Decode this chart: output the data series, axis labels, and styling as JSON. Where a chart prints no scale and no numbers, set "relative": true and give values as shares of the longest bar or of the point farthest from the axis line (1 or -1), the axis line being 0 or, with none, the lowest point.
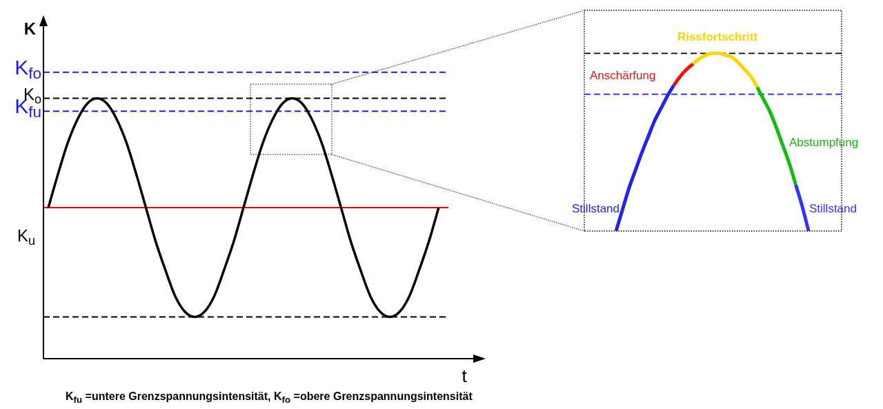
{
  "chart_data": [
    {
      "type": "line",
      "relative": true,
      "xlabel": "t",
      "ylabel": "K",
      "legend": false,
      "grid": false,
      "marker": "none",
      "line_style": "solid",
      "categories": [
        null,
        null,
        null,
        null,
        null,
        null,
        null,
        null,
        null,
        null,
        null,
        null,
        null,
        null,
        null,
        null,
        null,
        null,
        null,
        null,
        null,
        null,
        null,
        null,
        null,
        null,
        null,
        null,
        null,
        null,
        null,
        null,
        null,
        null,
        null,
        null,
        null,
        null,
        null,
        null,
        null
      ],
      "series": [
        {
          "color": "#000000",
          "values": [
            0.58,
            0.71,
            0.83,
            0.92,
            0.98,
            1,
            0.98,
            0.92,
            0.83,
            0.71,
            0.58,
            0.45,
            0.34,
            0.24,
            0.18,
            0.16,
            0.18,
            0.24,
            0.34,
            0.45,
            0.58,
            0.71,
            0.83,
            0.92,
            0.98,
            1,
            0.98,
            0.92,
            0.83,
            0.71,
            0.58,
            0.45,
            0.34,
            0.24,
            0.18,
            0.16,
            0.18,
            0.24,
            0.34,
            0.45,
            0.58
          ]
        }
      ],
      "ref_lines": [
        {
          "axis": "y",
          "value": 1.1,
          "label": "K$_{fo}$",
          "color": "#1a1aee",
          "line_style": "dashed"
        },
        {
          "axis": "y",
          "value": 1,
          "label": "K$_{o}$",
          "color": "#000000",
          "line_style": "dashed"
        },
        {
          "axis": "y",
          "value": 0.95,
          "label": "K$_{fu}$",
          "color": "#1a1aee",
          "line_style": "dashed"
        },
        {
          "axis": "y",
          "value": 0.58,
          "color": "#ee0000",
          "line_style": "solid"
        },
        {
          "axis": "y",
          "value": 0.16,
          "color": "#000000",
          "line_style": "dashed"
        }
      ],
      "annotations": [
        "K$_{u}$",
        "K$_{fu}$ =untere Grenzspannungsintensität, K$_{fo}$ =obere Grenzspannungsintensität"
      ]
    },
    {
      "type": "line",
      "relative": true,
      "legend": false,
      "grid": false,
      "marker": "none",
      "line_style": "solid",
      "categories": [
        null,
        null,
        null,
        null,
        null,
        null,
        null,
        null,
        null,
        null,
        null,
        null,
        null,
        null,
        null,
        null,
        null,
        null,
        null,
        null,
        null,
        null,
        null,
        null,
        null,
        null,
        null,
        null,
        null,
        null,
        null
      ],
      "series": [
        {
          "name": "Stillstand",
          "color": "#2222ee",
          "values": [
            0,
            0.12,
            0.24,
            0.34,
            0.44,
            0.53,
            0.62,
            0.69,
            0.76,
            0.82,
            null,
            null,
            null,
            null,
            null,
            null,
            null,
            null,
            null,
            null,
            null,
            null,
            null,
            null,
            null,
            null,
            null,
            null,
            null,
            null,
            null
          ]
        },
        {
          "name": "Anschärfung",
          "color": "#ee1111",
          "values": [
            null,
            null,
            null,
            null,
            null,
            null,
            null,
            null,
            null,
            0.82,
            0.87,
            0.91,
            0.94,
            null,
            null,
            null,
            null,
            null,
            null,
            null,
            null,
            null,
            null,
            null,
            null,
            null,
            null,
            null,
            null,
            null,
            null
          ]
        },
        {
          "name": "Rissfortschritt",
          "color": "#ffd400",
          "values": [
            null,
            null,
            null,
            null,
            null,
            null,
            null,
            null,
            null,
            null,
            null,
            null,
            0.94,
            0.97,
            0.99,
            1,
            1,
            0.99,
            0.98,
            0.95,
            0.91,
            0.87,
            0.81,
            null,
            null,
            null,
            null,
            null,
            null,
            null,
            null
          ]
        },
        {
          "name": "Abstumpfung",
          "color": "#11bb11",
          "values": [
            null,
            null,
            null,
            null,
            null,
            null,
            null,
            null,
            null,
            null,
            null,
            null,
            null,
            null,
            null,
            null,
            null,
            null,
            null,
            null,
            null,
            null,
            0.81,
            0.74,
            0.67,
            0.58,
            0.48,
            0.38,
            0.26,
            null,
            null
          ]
        },
        {
          "name": "Stillstand",
          "color": "#3333ff",
          "values": [
            null,
            null,
            null,
            null,
            null,
            null,
            null,
            null,
            null,
            null,
            null,
            null,
            null,
            null,
            null,
            null,
            null,
            null,
            null,
            null,
            null,
            null,
            null,
            null,
            null,
            null,
            null,
            null,
            0.26,
            0.14,
            0
          ]
        }
      ],
      "ref_lines": [
        {
          "axis": "y",
          "value": 1,
          "color": "#000000",
          "line_style": "dashed"
        },
        {
          "axis": "y",
          "value": 0.77,
          "color": "#1a1aee",
          "line_style": "dashed"
        }
      ]
    }
  ]
}
